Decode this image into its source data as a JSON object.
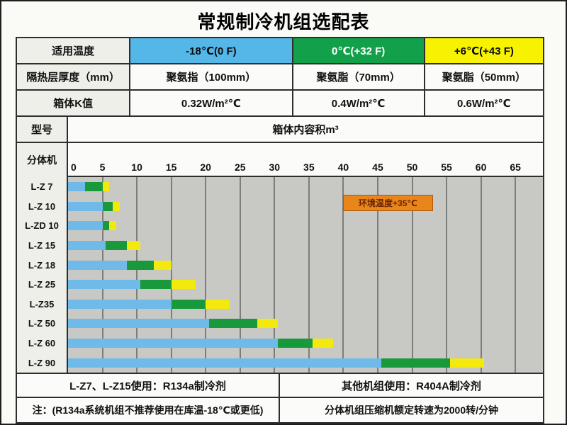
{
  "title": "常规制冷机组选配表",
  "spec_table": {
    "rows": [
      {
        "label": "适用温度",
        "cells": [
          {
            "text": "-18℃(0 F)"
          },
          {
            "text": "0℃(+32 F)"
          },
          {
            "text": "+6℃(+43 F)"
          }
        ]
      },
      {
        "label": "隔热层厚度（mm）",
        "cells": [
          {
            "text": "聚氨指（100mm）"
          },
          {
            "text": "聚氨脂（70mm）"
          },
          {
            "text": "聚氨脂（50mm）"
          }
        ]
      },
      {
        "label": "箱体K值",
        "cells": [
          {
            "text": "0.32W/m²℃"
          },
          {
            "text": "0.4W/m²℃"
          },
          {
            "text": "0.6W/m²℃"
          }
        ]
      }
    ]
  },
  "model_row": {
    "label": "型号",
    "value": "箱体内容积m³"
  },
  "unit_type_label": "分体机",
  "footer": {
    "refrigerant_left": "L-Z7、L-Z15使用：R134a制冷剂",
    "refrigerant_right": "其他机组使用：R404A制冷剂",
    "note_left": "注：(R134a系统机组不推荐使用在库温-18℃或更低)",
    "note_right": "分体机组压缩机额定转速为2000转/分钟"
  },
  "colors": {
    "temp_blue": "#55B6E8",
    "temp_green": "#12A04A",
    "temp_yellow": "#F6F200",
    "bar_blue": "#6FBAE8",
    "bar_green": "#189A3C",
    "bar_yellow": "#F3E90C",
    "plot_background": "#C8C8C4",
    "gridline": "#7d7d79",
    "annotation_orange": "#E8861C"
  },
  "chart_data": {
    "type": "bar",
    "orientation": "horizontal",
    "title": "箱体内容积m³",
    "xlabel": "箱体内容积m³",
    "ylabel": "型号",
    "xlim": [
      0,
      69
    ],
    "x_ticks": [
      0,
      5,
      10,
      15,
      20,
      25,
      30,
      35,
      40,
      45,
      50,
      55,
      60,
      65
    ],
    "grid": true,
    "legend_position": "table-header",
    "series": [
      {
        "key": "minus18",
        "name": "-18℃(0 F)",
        "color": "#6FBAE8"
      },
      {
        "key": "zero",
        "name": "0℃(+32 F)",
        "color": "#189A3C"
      },
      {
        "key": "plus6",
        "name": "+6℃(+43 F)",
        "color": "#F3E90C"
      }
    ],
    "models": [
      {
        "label": "L-Z 7",
        "values": [
          2.5,
          5,
          6
        ]
      },
      {
        "label": "L-Z 10",
        "values": [
          5,
          6.5,
          7.5
        ]
      },
      {
        "label": "L-ZD 10",
        "values": [
          5,
          6,
          7
        ]
      },
      {
        "label": "L-Z 15",
        "values": [
          5.5,
          8.5,
          10.5
        ]
      },
      {
        "label": "L-Z 18",
        "values": [
          8.5,
          12.5,
          15
        ]
      },
      {
        "label": "L-Z 25",
        "values": [
          10.5,
          15,
          18.5
        ]
      },
      {
        "label": "L-Z35",
        "values": [
          15,
          20,
          23.5
        ]
      },
      {
        "label": "L-Z 50",
        "values": [
          20.5,
          27.5,
          30.5
        ]
      },
      {
        "label": "L-Z 60",
        "values": [
          30.5,
          35.5,
          38.5
        ]
      },
      {
        "label": "L-Z 90",
        "values": [
          45.5,
          55.5,
          60.5
        ]
      }
    ],
    "annotation": {
      "text": "环境温度+35℃",
      "x_start": 40,
      "x_end": 53,
      "row": "L-Z 10"
    }
  }
}
